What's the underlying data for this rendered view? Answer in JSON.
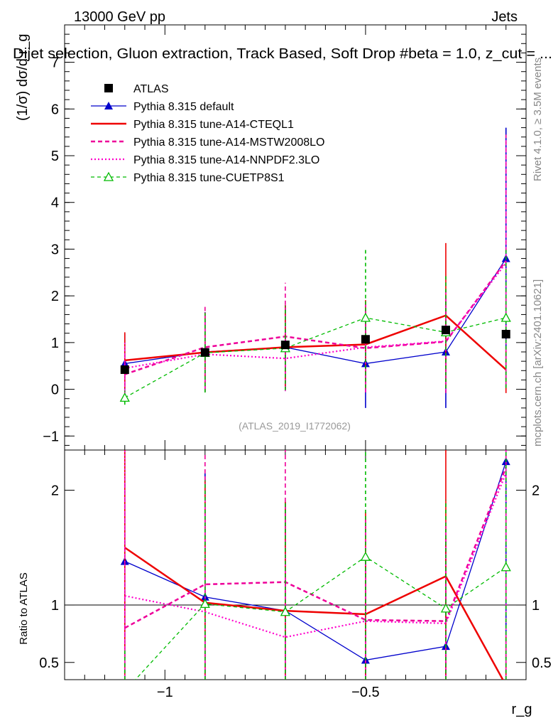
{
  "header": {
    "left": "13000 GeV pp",
    "right": "Jets",
    "title": "Dijet selection, Gluon extraction, Track Based, Soft Drop #beta = 1.0, z_cut = ..."
  },
  "side_text": {
    "rivet": "Rivet 4.1.0, ≥ 3.5M events",
    "site": "mcplots.cern.ch [arXiv:2401.10621]"
  },
  "watermark": "(ATLAS_2019_I1772062)",
  "labels": {
    "ylabel_main": "(1/σ) dσ/d r_g",
    "ylabel_ratio": "Ratio to ATLAS",
    "xlabel": "r_g"
  },
  "colors": {
    "atlas": "#000000",
    "default": "#0000cc",
    "cteql1": "#ee0000",
    "mstw": "#ee0099",
    "nnpdf": "#ff00cc",
    "cuetp": "#00bb00"
  },
  "chart_data": {
    "type": "line",
    "x": [
      -1.1,
      -0.9,
      -0.7,
      -0.5,
      -0.3,
      -0.15
    ],
    "xlim": [
      -1.25,
      -0.1
    ],
    "xticks": [
      -1.0,
      -0.5
    ],
    "xtick_labels": [
      "−1",
      "−0.5"
    ],
    "ylim_main": [
      -1.3,
      7.8
    ],
    "yticks_main": [
      -1,
      0,
      1,
      2,
      3,
      4,
      5,
      6,
      7
    ],
    "ytick_labels_main": [
      "−1",
      "0",
      "1",
      "2",
      "3",
      "4",
      "5",
      "6",
      "7"
    ],
    "ylim_ratio": [
      0.35,
      2.35
    ],
    "yticks_ratio": [
      0.5,
      1,
      2
    ],
    "ytick_labels_ratio": [
      "0.5",
      "1",
      "2"
    ],
    "series": [
      {
        "key": "atlas",
        "name": "ATLAS",
        "values": [
          0.42,
          0.79,
          0.95,
          1.07,
          1.27,
          1.18
        ],
        "err": [
          0.05,
          0.05,
          0.05,
          0.07,
          0.08,
          0.1
        ]
      },
      {
        "key": "default",
        "name": "Pythia 8.315 default",
        "values": [
          0.55,
          0.8,
          0.9,
          0.55,
          0.8,
          2.8
        ],
        "err": [
          0.65,
          0.85,
          0.9,
          0.95,
          1.2,
          2.8
        ],
        "ratio": [
          1.38,
          1.07,
          0.95,
          0.52,
          0.64,
          2.25
        ]
      },
      {
        "key": "cteql1",
        "name": "Pythia 8.315 tune-A14-CTEQL1",
        "values": [
          0.62,
          0.79,
          0.9,
          0.96,
          1.58,
          0.42
        ],
        "err": [
          0.6,
          0.85,
          0.9,
          0.95,
          1.55,
          0.5
        ],
        "ratio": [
          1.5,
          1.02,
          0.95,
          0.92,
          1.25,
          0.3
        ]
      },
      {
        "key": "mstw",
        "name": "Pythia 8.315 tune-A14-MSTW2008LO",
        "values": [
          0.32,
          0.9,
          1.13,
          0.88,
          1.02,
          2.75
        ],
        "err": [
          0.55,
          0.9,
          1.15,
          0.95,
          1.1,
          2.7
        ],
        "ratio": [
          0.8,
          1.18,
          1.2,
          0.87,
          0.86,
          2.2
        ]
      },
      {
        "key": "nnpdf",
        "name": "Pythia 8.315 tune-A14-NNPDF2.3LO",
        "values": [
          0.45,
          0.75,
          0.66,
          0.9,
          1.03,
          2.7
        ],
        "err": [
          0.55,
          0.8,
          0.7,
          0.95,
          1.05,
          2.65
        ],
        "ratio": [
          1.08,
          0.94,
          0.72,
          0.86,
          0.84,
          2.15
        ]
      },
      {
        "key": "cuetp",
        "name": "Pythia 8.315 tune-CUETP8S1",
        "values": [
          -0.18,
          0.78,
          0.88,
          1.53,
          1.22,
          1.53
        ],
        "err": [
          0.15,
          0.85,
          0.9,
          1.5,
          1.2,
          1.5
        ],
        "ratio": [
          0.25,
          1.01,
          0.94,
          1.42,
          0.97,
          1.33
        ]
      }
    ]
  }
}
